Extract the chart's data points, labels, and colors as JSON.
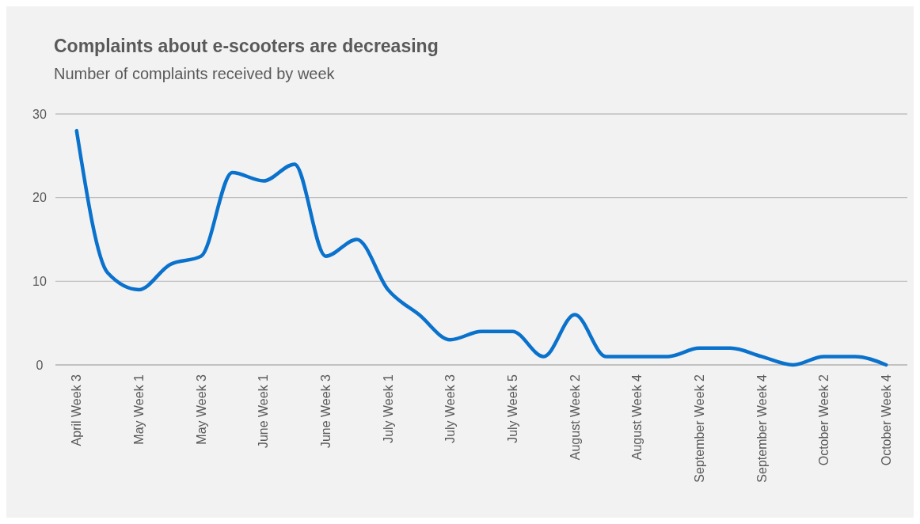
{
  "chart_data": {
    "type": "line",
    "title": "Complaints about e-scooters are decreasing",
    "subtitle": "Number of complaints received by week",
    "categories": [
      "April Week 3",
      null,
      "May Week 1",
      null,
      "May Week 3",
      null,
      "June Week 1",
      null,
      "June Week 3",
      null,
      "July Week 1",
      null,
      "July Week 3",
      null,
      "July Week 5",
      null,
      "August Week 2",
      null,
      "August Week 4",
      null,
      "September Week 2",
      null,
      "September Week 4",
      null,
      "October Week 2",
      null,
      "October Week 4"
    ],
    "series": [
      {
        "color": "#0a72cc",
        "values": [
          28,
          11,
          9,
          12,
          13,
          23,
          22,
          24,
          13,
          15,
          9,
          6,
          3,
          4,
          4,
          1,
          6,
          1,
          1,
          1,
          2,
          2,
          1,
          0,
          1,
          1,
          0
        ]
      }
    ],
    "ylim": [
      0,
      30
    ],
    "yticks": [
      0,
      10,
      20,
      30
    ],
    "grid": "y",
    "marker": "none",
    "line_style": "solid"
  }
}
